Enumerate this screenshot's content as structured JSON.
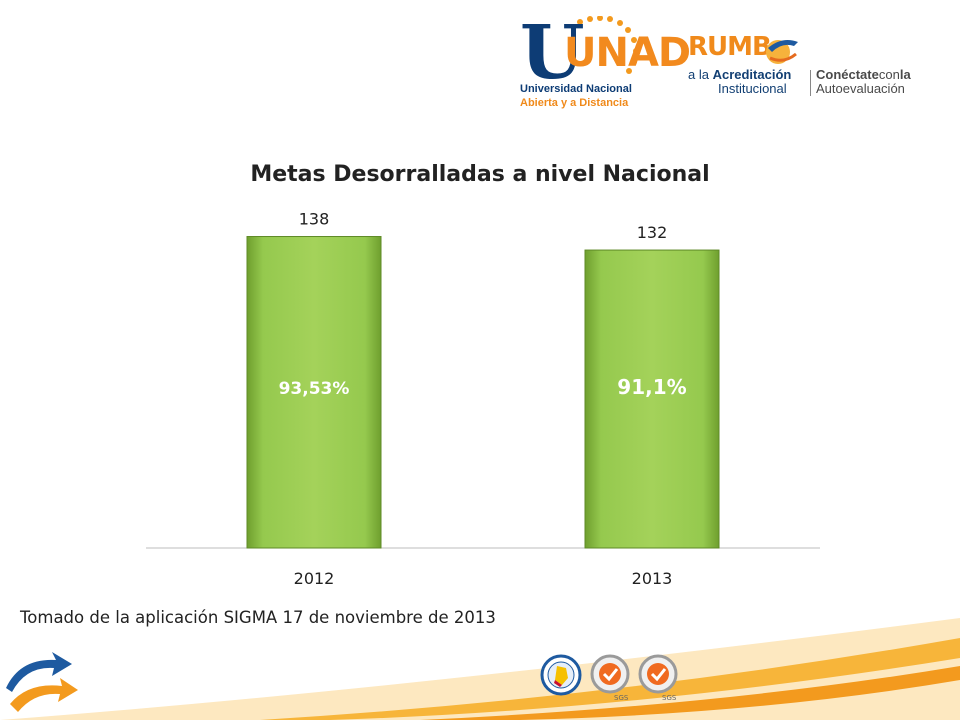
{
  "header": {
    "unad_logo": {
      "wordmark": "UNAD",
      "line1": "Universidad Nacional",
      "line2": "Abierta y a Distancia"
    },
    "rumbo_logo": {
      "wordmark": "RUMB",
      "line1_prefix": "a la ",
      "line1_bold": "Acreditación",
      "line2": "Institucional",
      "side_bold": "Conéctate",
      "side_mid": "con",
      "side_end": "la",
      "side_line2": "Autoevaluación"
    }
  },
  "chart_data": {
    "type": "bar",
    "title": "Metas Desorralladas a nivel Nacional",
    "categories": [
      "2012",
      "2013"
    ],
    "values": [
      138,
      132
    ],
    "value_labels": [
      "138",
      "132"
    ],
    "inner_labels": [
      "93,53%",
      "91,1%"
    ],
    "ylim": [
      0,
      140
    ],
    "grid": false,
    "legend": "none",
    "bar_color": "#86c13f"
  },
  "footer": {
    "source_note": "Tomado de la aplicación SIGMA 17 de noviembre de 2013",
    "seals": [
      "colombia-seal-icon",
      "sgs-seal-icon",
      "sgs-seal-icon"
    ],
    "seal_text": "SGS"
  },
  "colors": {
    "accent_orange": "#f39a1e",
    "brand_blue": "#0d3c75",
    "bar_green": "#86c13f"
  }
}
